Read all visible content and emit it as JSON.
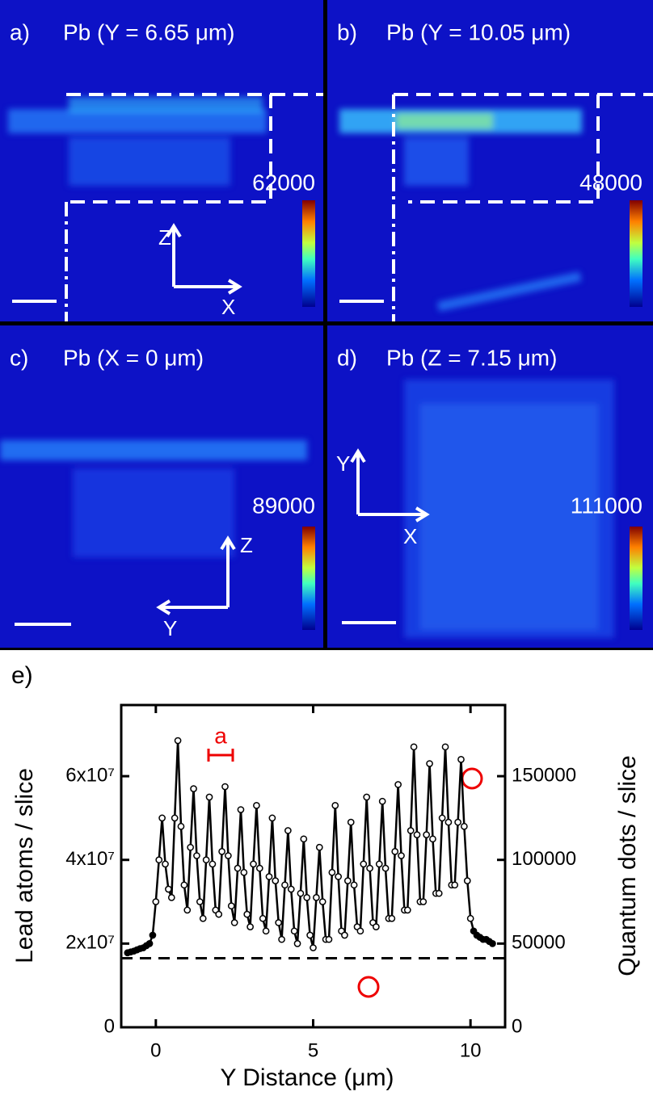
{
  "panels": [
    {
      "label": "a)",
      "title": "Pb (Y = 6.65 μm)",
      "colorbar_max": 62000,
      "axes": [
        "Z",
        "X"
      ]
    },
    {
      "label": "b)",
      "title": "Pb (Y = 10.05 μm)",
      "colorbar_max": 48000
    },
    {
      "label": "c)",
      "title": "Pb (X = 0 μm)",
      "colorbar_max": 89000,
      "axes": [
        "Z",
        "Y"
      ]
    },
    {
      "label": "d)",
      "title": "Pb (Z = 7.15 μm)",
      "colorbar_max": 111000,
      "axes": [
        "Y",
        "X"
      ]
    }
  ],
  "chart_data": {
    "type": "line",
    "label": "e)",
    "xlabel": "Y Distance (μm)",
    "ylabel": "Lead atoms / slice",
    "y2label": "Quantum dots / slice",
    "annotation": "a",
    "color": "#000000",
    "marker_fill": "#ffffff",
    "hline": 16500000.0,
    "xlim": [
      -1.1,
      11.1
    ],
    "xticks": [
      0,
      5,
      10
    ],
    "ylim": [
      0,
      77000000.0
    ],
    "yticks": [
      0,
      {
        "value": 20000000.0,
        "label": "2x10⁷"
      },
      {
        "value": 40000000.0,
        "label": "4x10⁷"
      },
      {
        "value": 60000000.0,
        "label": "6x10⁷"
      }
    ],
    "y2lim": [
      0,
      192500
    ],
    "y2ticks": [
      0,
      50000,
      100000,
      150000
    ],
    "x": [
      -0.9,
      -0.8,
      -0.7,
      -0.6,
      -0.5,
      -0.4,
      -0.3,
      -0.2,
      -0.1,
      0.0,
      0.1,
      0.2,
      0.3,
      0.4,
      0.5,
      0.6,
      0.7,
      0.8,
      0.9,
      1.0,
      1.1,
      1.2,
      1.3,
      1.4,
      1.5,
      1.6,
      1.7,
      1.8,
      1.9,
      2.0,
      2.1,
      2.2,
      2.3,
      2.4,
      2.5,
      2.6,
      2.7,
      2.8,
      2.9,
      3.0,
      3.1,
      3.2,
      3.3,
      3.4,
      3.5,
      3.6,
      3.7,
      3.8,
      3.9,
      4.0,
      4.1,
      4.2,
      4.3,
      4.4,
      4.5,
      4.6,
      4.7,
      4.8,
      4.9,
      5.0,
      5.1,
      5.2,
      5.3,
      5.4,
      5.5,
      5.6,
      5.7,
      5.8,
      5.9,
      6.0,
      6.1,
      6.2,
      6.3,
      6.4,
      6.5,
      6.6,
      6.7,
      6.8,
      6.9,
      7.0,
      7.1,
      7.2,
      7.3,
      7.4,
      7.5,
      7.6,
      7.7,
      7.8,
      7.9,
      8.0,
      8.1,
      8.2,
      8.3,
      8.4,
      8.5,
      8.6,
      8.7,
      8.8,
      8.9,
      9.0,
      9.1,
      9.2,
      9.3,
      9.4,
      9.5,
      9.6,
      9.7,
      9.8,
      9.9,
      10.0,
      10.1,
      10.2,
      10.3,
      10.4,
      10.5,
      10.6,
      10.7
    ],
    "values": [
      17800000.0,
      18000000.0,
      18200000.0,
      18500000.0,
      18800000.0,
      19000000.0,
      19500000.0,
      20000000.0,
      22000000.0,
      30000000.0,
      40000000.0,
      50000000.0,
      39000000.0,
      33000000.0,
      31000000.0,
      50000000.0,
      68500000.0,
      48000000.0,
      34000000.0,
      28000000.0,
      43000000.0,
      57000000.0,
      41000000.0,
      30000000.0,
      26000000.0,
      40000000.0,
      55000000.0,
      39000000.0,
      28000000.0,
      27000000.0,
      42000000.0,
      57500000.0,
      41000000.0,
      29000000.0,
      25000000.0,
      38000000.0,
      52000000.0,
      37000000.0,
      27000000.0,
      24000000.0,
      39000000.0,
      53000000.0,
      38000000.0,
      26000000.0,
      23000000.0,
      36000000.0,
      50000000.0,
      35000000.0,
      25000000.0,
      21000000.0,
      34000000.0,
      47000000.0,
      33000000.0,
      23000000.0,
      20000000.0,
      32000000.0,
      45000000.0,
      31000000.0,
      22000000.0,
      19000000.0,
      31000000.0,
      43000000.0,
      30000000.0,
      21000000.0,
      21000000.0,
      37000000.0,
      53000000.0,
      36000000.0,
      23000000.0,
      22000000.0,
      35000000.0,
      49000000.0,
      34000000.0,
      24000000.0,
      23000000.0,
      39000000.0,
      55000000.0,
      38000000.0,
      25000000.0,
      24000000.0,
      39000000.0,
      54000000.0,
      38000000.0,
      26000000.0,
      26000000.0,
      42000000.0,
      58000000.0,
      41000000.0,
      28000000.0,
      28000000.0,
      47000000.0,
      67000000.0,
      46000000.0,
      30000000.0,
      30000000.0,
      46000000.0,
      63000000.0,
      45000000.0,
      32000000.0,
      32000000.0,
      50000000.0,
      67000000.0,
      49000000.0,
      34000000.0,
      34000000.0,
      49000000.0,
      64000000.0,
      48000000.0,
      35000000.0,
      26000000.0,
      23000000.0,
      22000000.0,
      21500000.0,
      21000000.0,
      21000000.0,
      20500000.0,
      20000000.0
    ]
  }
}
